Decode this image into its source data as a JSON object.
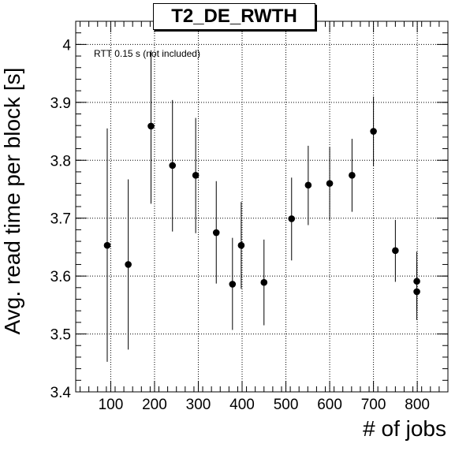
{
  "chart_data": {
    "type": "scatter",
    "title": "T2_DE_RWTH",
    "xlabel": "# of jobs",
    "ylabel": "Avg. read time per block [s]",
    "annotation": "RTT 0.15 s (not included)",
    "xlim": [
      20,
      870
    ],
    "ylim": [
      3.4,
      4.04
    ],
    "xticks": [
      100,
      200,
      300,
      400,
      500,
      600,
      700,
      800
    ],
    "yticks": [
      3.4,
      3.5,
      3.6,
      3.7,
      3.8,
      3.9,
      4.0
    ],
    "ytick_labels": [
      "3.4",
      "3.5",
      "3.6",
      "3.7",
      "3.8",
      "3.9",
      "4"
    ],
    "grid": true,
    "points": [
      {
        "x": 92,
        "y": 3.653,
        "ylow": 3.452,
        "yhigh": 3.855
      },
      {
        "x": 140,
        "y": 3.62,
        "ylow": 3.473,
        "yhigh": 3.767
      },
      {
        "x": 192,
        "y": 3.859,
        "ylow": 3.725,
        "yhigh": 3.99
      },
      {
        "x": 241,
        "y": 3.791,
        "ylow": 3.677,
        "yhigh": 3.904
      },
      {
        "x": 294,
        "y": 3.774,
        "ylow": 3.674,
        "yhigh": 3.873
      },
      {
        "x": 341,
        "y": 3.675,
        "ylow": 3.587,
        "yhigh": 3.764
      },
      {
        "x": 378,
        "y": 3.586,
        "ylow": 3.507,
        "yhigh": 3.666
      },
      {
        "x": 398,
        "y": 3.653,
        "ylow": 3.578,
        "yhigh": 3.728
      },
      {
        "x": 450,
        "y": 3.589,
        "ylow": 3.515,
        "yhigh": 3.663
      },
      {
        "x": 513,
        "y": 3.699,
        "ylow": 3.627,
        "yhigh": 3.77
      },
      {
        "x": 551,
        "y": 3.757,
        "ylow": 3.688,
        "yhigh": 3.825
      },
      {
        "x": 600,
        "y": 3.76,
        "ylow": 3.697,
        "yhigh": 3.823
      },
      {
        "x": 651,
        "y": 3.774,
        "ylow": 3.711,
        "yhigh": 3.837
      },
      {
        "x": 700,
        "y": 3.85,
        "ylow": 3.79,
        "yhigh": 3.91
      },
      {
        "x": 750,
        "y": 3.644,
        "ylow": 3.59,
        "yhigh": 3.697
      },
      {
        "x": 799,
        "y": 3.591,
        "ylow": 3.541,
        "yhigh": 3.642
      },
      {
        "x": 799,
        "y": 3.573,
        "ylow": 3.524,
        "yhigh": 3.623
      }
    ]
  }
}
